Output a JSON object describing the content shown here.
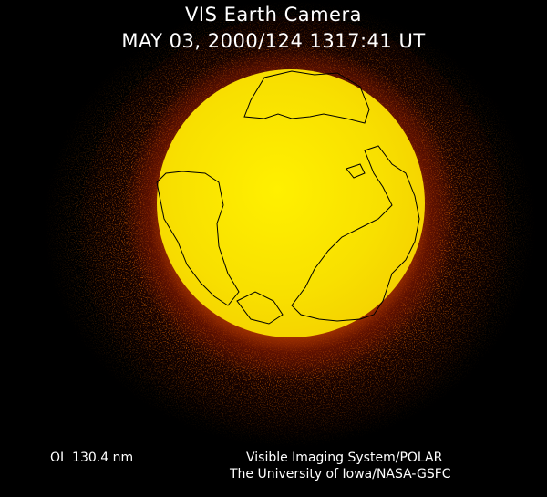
{
  "header": {
    "title": "VIS Earth Camera",
    "timestamp": "MAY 03, 2000/124 1317:41 UT"
  },
  "footer": {
    "band": "OI  130.4 nm",
    "credit_line1": "Visible Imaging System/POLAR",
    "credit_line2": "The University of Iowa/NASA-GSFC"
  },
  "colors": {
    "background": "#000000",
    "disk_core": "#fff000",
    "halo": "#f0a000",
    "outer_glow": "#a03000",
    "coastline": "#000000"
  }
}
